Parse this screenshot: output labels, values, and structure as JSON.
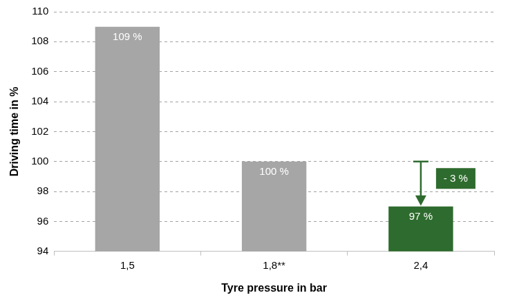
{
  "chart_data": {
    "type": "bar",
    "categories": [
      "1,5",
      "1,8**",
      "2,4"
    ],
    "values": [
      109,
      100,
      97
    ],
    "value_labels": [
      "109 %",
      "100 %",
      "97 %"
    ],
    "colors": [
      "#a6a6a6",
      "#a6a6a6",
      "#2e6b2e"
    ],
    "data_labels": true,
    "x_label": "Tyre pressure in bar",
    "y_label": "Driving time in %",
    "ylim": [
      94,
      110
    ],
    "yticks": [
      94,
      96,
      98,
      100,
      102,
      104,
      106,
      108,
      110
    ],
    "grid": true,
    "annotations": [
      {
        "text": "- 3 %",
        "category": "2,4",
        "from": 100,
        "to": 97,
        "color": "#2e6b2e"
      }
    ]
  }
}
